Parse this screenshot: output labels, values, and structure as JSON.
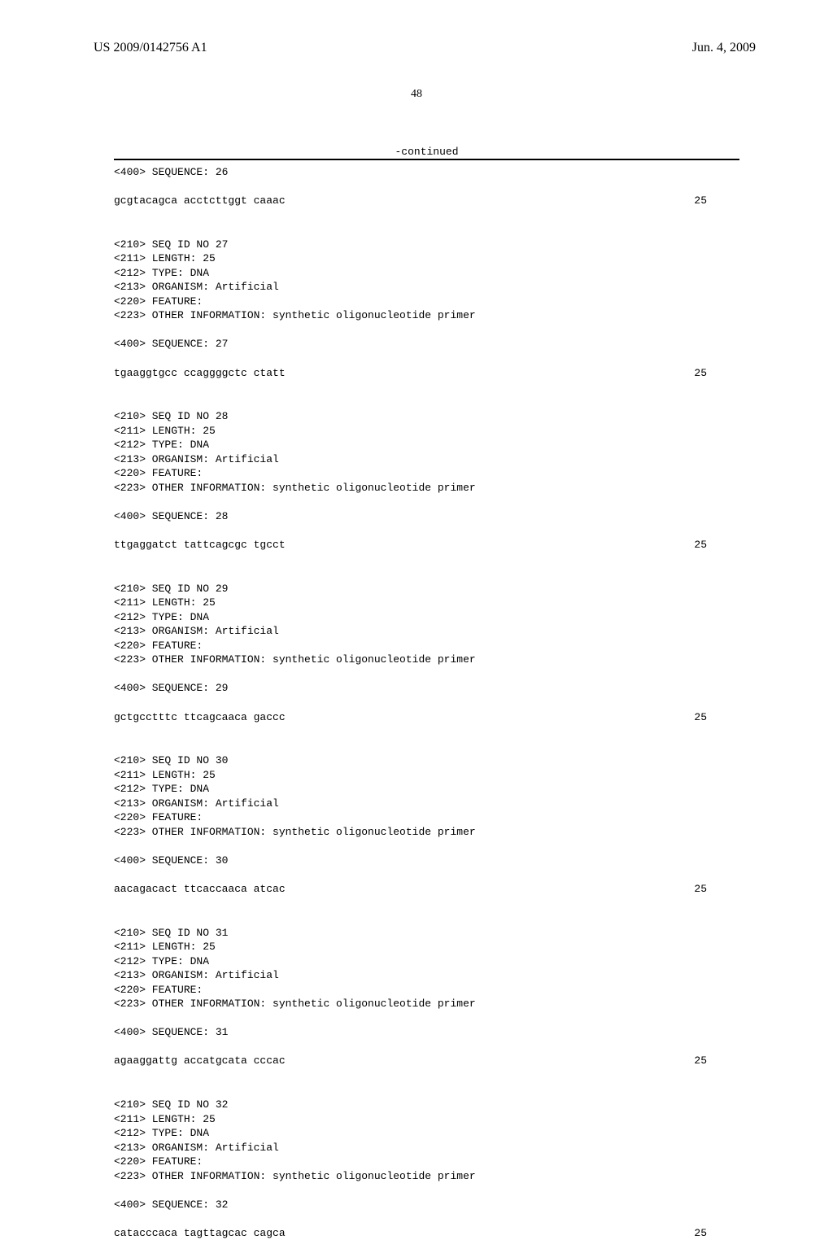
{
  "header": {
    "patent_id": "US 2009/0142756 A1",
    "date": "Jun. 4, 2009"
  },
  "page_number": "48",
  "continued": "-continued",
  "sequences": [
    {
      "header_lines": [
        "<400> SEQUENCE: 26"
      ],
      "sequence_text": "gcgtacagca acctcttggt caaac",
      "length_value": "25"
    },
    {
      "header_lines": [
        "<210> SEQ ID NO 27",
        "<211> LENGTH: 25",
        "<212> TYPE: DNA",
        "<213> ORGANISM: Artificial",
        "<220> FEATURE:",
        "<223> OTHER INFORMATION: synthetic oligonucleotide primer",
        "",
        "<400> SEQUENCE: 27"
      ],
      "sequence_text": "tgaaggtgcc ccaggggctc ctatt",
      "length_value": "25"
    },
    {
      "header_lines": [
        "<210> SEQ ID NO 28",
        "<211> LENGTH: 25",
        "<212> TYPE: DNA",
        "<213> ORGANISM: Artificial",
        "<220> FEATURE:",
        "<223> OTHER INFORMATION: synthetic oligonucleotide primer",
        "",
        "<400> SEQUENCE: 28"
      ],
      "sequence_text": "ttgaggatct tattcagcgc tgcct",
      "length_value": "25"
    },
    {
      "header_lines": [
        "<210> SEQ ID NO 29",
        "<211> LENGTH: 25",
        "<212> TYPE: DNA",
        "<213> ORGANISM: Artificial",
        "<220> FEATURE:",
        "<223> OTHER INFORMATION: synthetic oligonucleotide primer",
        "",
        "<400> SEQUENCE: 29"
      ],
      "sequence_text": "gctgcctttc ttcagcaaca gaccc",
      "length_value": "25"
    },
    {
      "header_lines": [
        "<210> SEQ ID NO 30",
        "<211> LENGTH: 25",
        "<212> TYPE: DNA",
        "<213> ORGANISM: Artificial",
        "<220> FEATURE:",
        "<223> OTHER INFORMATION: synthetic oligonucleotide primer",
        "",
        "<400> SEQUENCE: 30"
      ],
      "sequence_text": "aacagacact ttcaccaaca atcac",
      "length_value": "25"
    },
    {
      "header_lines": [
        "<210> SEQ ID NO 31",
        "<211> LENGTH: 25",
        "<212> TYPE: DNA",
        "<213> ORGANISM: Artificial",
        "<220> FEATURE:",
        "<223> OTHER INFORMATION: synthetic oligonucleotide primer",
        "",
        "<400> SEQUENCE: 31"
      ],
      "sequence_text": "agaaggattg accatgcata cccac",
      "length_value": "25"
    },
    {
      "header_lines": [
        "<210> SEQ ID NO 32",
        "<211> LENGTH: 25",
        "<212> TYPE: DNA",
        "<213> ORGANISM: Artificial",
        "<220> FEATURE:",
        "<223> OTHER INFORMATION: synthetic oligonucleotide primer",
        "",
        "<400> SEQUENCE: 32"
      ],
      "sequence_text": "catacccaca tagttagcac cagca",
      "length_value": "25"
    }
  ]
}
